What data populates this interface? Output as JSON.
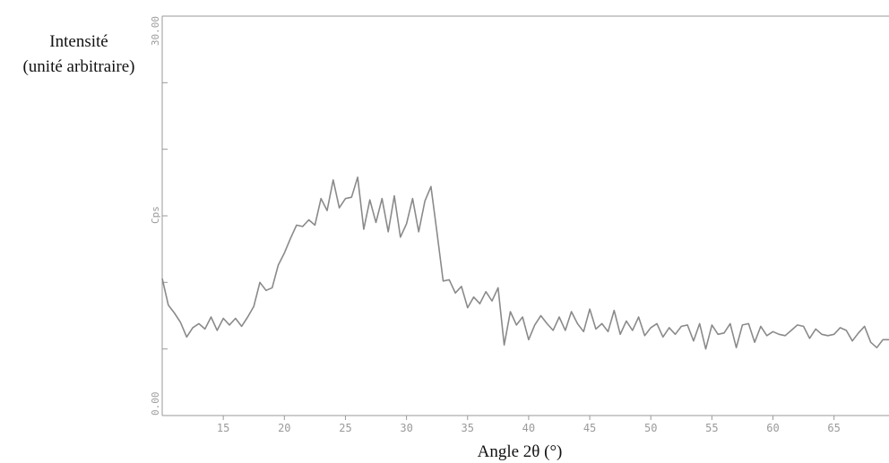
{
  "chart_data": {
    "type": "line",
    "ylabel_line1": "Intensité",
    "ylabel_line2": "(unité arbitraire)",
    "xlabel": "Angle 2θ (°)",
    "y_unit": "Cps",
    "y_top_label": "30.00",
    "y_bottom_label": "0.00",
    "xlim": [
      10,
      69.5
    ],
    "ylim": [
      0,
      30
    ],
    "x_ticks": [
      15,
      20,
      25,
      30,
      35,
      40,
      45,
      50,
      55,
      60,
      65
    ],
    "x_tick_labels": [
      "15",
      "20",
      "25",
      "30",
      "35",
      "40",
      "45",
      "50",
      "55",
      "60",
      "65"
    ],
    "y_ticks": [
      5,
      10,
      15,
      20,
      25
    ],
    "grid": false,
    "line_color": "#8a8a8a",
    "axis_color": "#9a9a9a",
    "series": [
      {
        "x": [
          10,
          10.5,
          11,
          11.5,
          12,
          12.5,
          13,
          13.5,
          14,
          14.5,
          15,
          15.5,
          16,
          16.5,
          17,
          17.5,
          18,
          18.5,
          19,
          19.5,
          20,
          20.5,
          21,
          21.5,
          22,
          22.5,
          23,
          23.5,
          24,
          24.5,
          25,
          25.5,
          26,
          26.5,
          27,
          27.5,
          28,
          28.5,
          29,
          29.5,
          30,
          30.5,
          31,
          31.5,
          32,
          32.5,
          33,
          33.5,
          34,
          34.5,
          35,
          35.5,
          36,
          36.5,
          37,
          37.5,
          38,
          38.5,
          39,
          39.5,
          40,
          40.5,
          41,
          41.5,
          42,
          42.5,
          43,
          43.5,
          44,
          44.5,
          45,
          45.5,
          46,
          46.5,
          47,
          47.5,
          48,
          48.5,
          49,
          49.5,
          50,
          50.5,
          51,
          51.5,
          52,
          52.5,
          53,
          53.5,
          54,
          54.5,
          55,
          55.5,
          56,
          56.5,
          57,
          57.5,
          58,
          58.5,
          59,
          59.5,
          60,
          60.5,
          61,
          61.5,
          62,
          62.5,
          63,
          63.5,
          64,
          64.5,
          65,
          65.5,
          66,
          66.5,
          67,
          67.5,
          68,
          68.5,
          69,
          69.5
        ],
        "values": [
          10.3,
          8.3,
          7.7,
          7.0,
          5.9,
          6.6,
          6.9,
          6.5,
          7.4,
          6.4,
          7.3,
          6.8,
          7.3,
          6.7,
          7.4,
          8.2,
          10.0,
          9.4,
          9.6,
          11.3,
          12.2,
          13.3,
          14.3,
          14.2,
          14.7,
          14.3,
          16.3,
          15.4,
          17.7,
          15.6,
          16.3,
          16.4,
          17.9,
          14.0,
          16.2,
          14.5,
          16.3,
          13.8,
          16.5,
          13.4,
          14.4,
          16.3,
          13.8,
          16.1,
          17.2,
          13.7,
          10.1,
          10.2,
          9.2,
          9.7,
          8.1,
          8.9,
          8.4,
          9.3,
          8.6,
          9.6,
          5.3,
          7.8,
          6.8,
          7.4,
          5.7,
          6.8,
          7.5,
          6.9,
          6.4,
          7.4,
          6.4,
          7.8,
          6.9,
          6.3,
          8.0,
          6.5,
          6.9,
          6.3,
          7.9,
          6.1,
          7.1,
          6.4,
          7.4,
          6.0,
          6.6,
          6.9,
          5.9,
          6.6,
          6.1,
          6.7,
          6.8,
          5.6,
          6.9,
          5.0,
          6.8,
          6.1,
          6.2,
          6.9,
          5.1,
          6.8,
          6.9,
          5.5,
          6.7,
          6.0,
          6.3,
          6.1,
          6.0,
          6.4,
          6.8,
          6.7,
          5.8,
          6.5,
          6.1,
          6.0,
          6.1,
          6.6,
          6.4,
          5.6,
          6.2,
          6.7,
          5.5,
          5.1,
          5.7,
          5.7
        ]
      }
    ]
  }
}
